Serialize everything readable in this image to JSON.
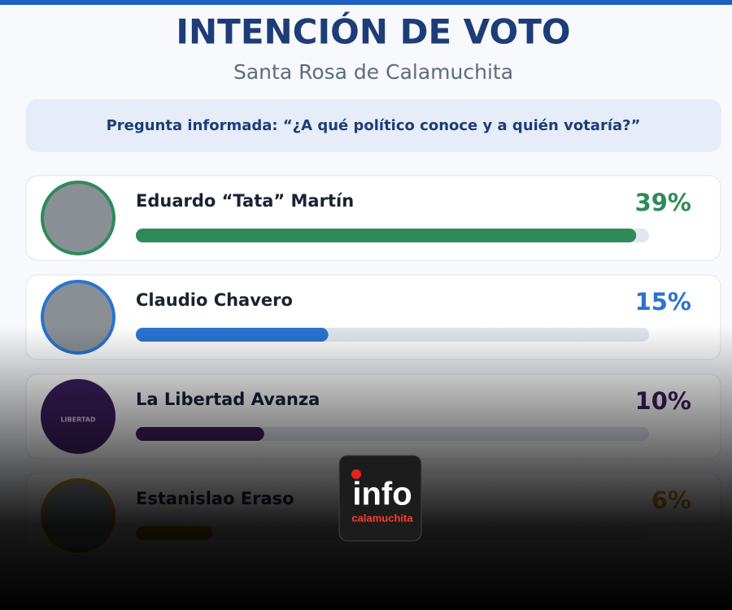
{
  "chart_data": {
    "type": "bar",
    "title": "INTENCIÓN DE VOTO",
    "subtitle": "Santa Rosa de Calamuchita",
    "question": "Pregunta informada: “¿A qué político conoce y a quién votaría?”",
    "categories": [
      "Eduardo “Tata” Martín",
      "Claudio Chavero",
      "La Libertad Avanza",
      "Estanislao Eraso"
    ],
    "values": [
      39,
      15,
      10,
      6
    ],
    "value_labels": [
      "39%",
      "15%",
      "10%",
      "6%"
    ],
    "colors": [
      "#2e8b57",
      "#2a74d0",
      "#3b1f5c",
      "#c08a1a"
    ],
    "xlim": [
      0,
      40
    ],
    "avatar_text": [
      null,
      null,
      "LIBERTAD",
      null
    ]
  },
  "logo": {
    "top": "info",
    "bottom": "calamuchita"
  }
}
